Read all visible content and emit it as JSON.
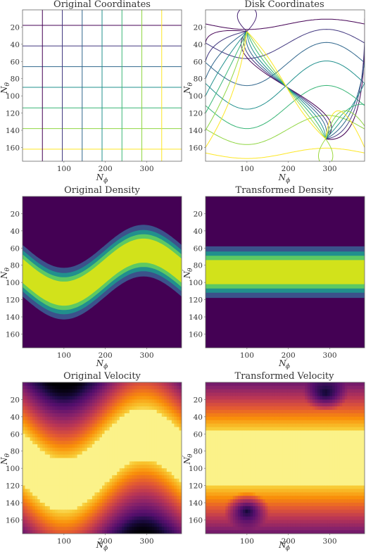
{
  "chart_data": [
    {
      "id": "orig-coords",
      "type": "line",
      "title": "Original Coordinates",
      "xlabel": "N_ϕ",
      "ylabel": "N_θ",
      "xlim": [
        0,
        384
      ],
      "ylim": [
        176,
        0
      ],
      "xticks": [
        100,
        200,
        300
      ],
      "yticks": [
        20,
        40,
        60,
        80,
        100,
        120,
        140,
        160
      ],
      "grid_vertical_x": [
        48,
        96,
        144,
        192,
        240,
        288,
        336
      ],
      "grid_horizontal_y": [
        18,
        42,
        66,
        90,
        114,
        138,
        162
      ]
    },
    {
      "id": "disk-coords",
      "type": "line",
      "title": "Disk Coordinates",
      "xlabel": "N_ϕ",
      "ylabel": "N_θ",
      "xlim": [
        0,
        384
      ],
      "ylim": [
        176,
        0
      ],
      "xticks": [
        100,
        200,
        300
      ],
      "yticks": [
        20,
        40,
        60,
        80,
        100,
        120,
        140,
        160
      ],
      "pole_points": [
        [
          100,
          25
        ],
        [
          290,
          150
        ]
      ]
    },
    {
      "id": "orig-density",
      "type": "heatmap",
      "title": "Original Density",
      "xlabel": "N_ϕ",
      "ylabel": "N_θ",
      "xlim": [
        0,
        384
      ],
      "ylim": [
        176,
        0
      ],
      "xticks": [
        100,
        200,
        300
      ],
      "yticks": [
        20,
        40,
        60,
        80,
        100,
        120,
        140,
        160
      ],
      "band_center": {
        "mean": 88,
        "amplitude": 25,
        "trough_x": 100
      },
      "band_halfwidths": [
        30,
        24,
        19,
        14
      ],
      "colors": [
        "#440154",
        "#3b528b",
        "#21908d",
        "#5dc963",
        "#d2e21b"
      ]
    },
    {
      "id": "trans-density",
      "type": "heatmap",
      "title": "Transformed Density",
      "xlabel": "N′_ϕ",
      "ylabel": "N′_θ",
      "xlim": [
        0,
        384
      ],
      "ylim": [
        176,
        0
      ],
      "xticks": [
        100,
        200,
        300
      ],
      "yticks": [
        20,
        40,
        60,
        80,
        100,
        120,
        140,
        160
      ],
      "band_center": {
        "mean": 88,
        "amplitude": 0,
        "trough_x": 100
      },
      "band_halfwidths": [
        30,
        24,
        19,
        14
      ],
      "colors": [
        "#440154",
        "#3b528b",
        "#21908d",
        "#5dc963",
        "#d2e21b"
      ]
    },
    {
      "id": "orig-velocity",
      "type": "heatmap",
      "title": "Original Velocity",
      "xlabel": "N_ϕ",
      "ylabel": "N_θ",
      "xlim": [
        0,
        384
      ],
      "ylim": [
        176,
        0
      ],
      "xticks": [
        100,
        200,
        300
      ],
      "yticks": [
        20,
        40,
        60,
        80,
        100,
        120,
        140,
        160
      ],
      "bright_band": {
        "mean": 90,
        "amplitude": 30,
        "halfwidth": 30,
        "trough_x": 100
      },
      "dark_spots": [
        [
          100,
          2
        ],
        [
          290,
          176
        ]
      ],
      "colormap": "inferno"
    },
    {
      "id": "trans-velocity",
      "type": "heatmap",
      "title": "Transformed Velocity",
      "xlabel": "N′_ϕ",
      "ylabel": "N′_θ",
      "xlim": [
        0,
        384
      ],
      "ylim": [
        176,
        0
      ],
      "xticks": [
        100,
        200,
        300
      ],
      "yticks": [
        20,
        40,
        60,
        80,
        100,
        120,
        140,
        160
      ],
      "bright_band": {
        "mean": 88,
        "amplitude": 0,
        "halfwidth": 32,
        "trough_x": 100
      },
      "dark_spots": [
        [
          290,
          12
        ],
        [
          100,
          150
        ]
      ],
      "colormap": "inferno"
    }
  ]
}
